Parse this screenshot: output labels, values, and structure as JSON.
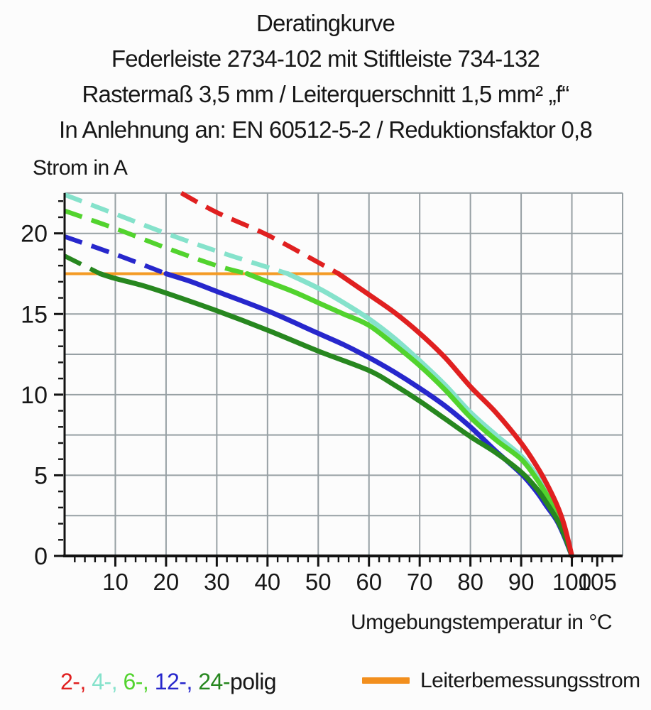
{
  "title": {
    "lines": [
      "Deratingkurve",
      "Federleiste 2734-102 mit Stiftleiste 734-132",
      "Rastermaß 3,5 mm / Leiterquerschnitt 1,5 mm² „f“",
      "In Anlehnung an: EN 60512-5-2 / Reduktionsfaktor 0,8"
    ]
  },
  "chart_data": {
    "type": "line",
    "title": "Deratingkurve",
    "xlabel": "Umgebungstemperatur in °C",
    "ylabel": "Strom in A",
    "xlim": [
      0,
      110
    ],
    "ylim": [
      0,
      22.5
    ],
    "x_major_ticks": [
      10,
      20,
      30,
      40,
      50,
      60,
      70,
      80,
      90,
      100,
      105
    ],
    "x_minor_step": 2,
    "y_major_ticks": [
      0,
      5,
      10,
      15,
      20
    ],
    "y_minor_step": 1,
    "grid": {
      "x_step": 10,
      "y_step": 2.5,
      "color": "#97A0A4",
      "on": true
    },
    "axis_color": "#121212",
    "rated_current_line": {
      "y": 17.5,
      "x_start": 0,
      "x_end": 54,
      "color": "#F49B25"
    },
    "series": [
      {
        "name": "4-polig",
        "color": "#85E2CB",
        "dashed": [
          [
            0,
            22.4
          ],
          [
            10,
            21.2
          ],
          [
            20,
            20.0
          ],
          [
            30,
            18.9
          ],
          [
            40,
            17.9
          ],
          [
            44,
            17.5
          ]
        ],
        "solid": [
          [
            44,
            17.5
          ],
          [
            50,
            16.6
          ],
          [
            55,
            15.7
          ],
          [
            60,
            14.7
          ],
          [
            65,
            13.5
          ],
          [
            70,
            12.1
          ],
          [
            75,
            10.6
          ],
          [
            80,
            8.9
          ],
          [
            85,
            7.5
          ],
          [
            90,
            6.2
          ],
          [
            93,
            5.0
          ],
          [
            95,
            4.0
          ],
          [
            97,
            2.8
          ],
          [
            98.5,
            1.7
          ],
          [
            100,
            0
          ]
        ]
      },
      {
        "name": "12-polig",
        "color": "#2727CC",
        "dashed": [
          [
            0,
            19.8
          ],
          [
            10,
            18.7
          ],
          [
            20,
            17.5
          ]
        ],
        "solid": [
          [
            20,
            17.5
          ],
          [
            25,
            17.0
          ],
          [
            30,
            16.4
          ],
          [
            40,
            15.2
          ],
          [
            50,
            13.8
          ],
          [
            55,
            13.1
          ],
          [
            60,
            12.3
          ],
          [
            65,
            11.4
          ],
          [
            70,
            10.4
          ],
          [
            75,
            9.3
          ],
          [
            80,
            8.0
          ],
          [
            85,
            6.5
          ],
          [
            90,
            5.1
          ],
          [
            93,
            4.0
          ],
          [
            95,
            3.1
          ],
          [
            97,
            2.2
          ],
          [
            98.5,
            1.2
          ],
          [
            100,
            0
          ]
        ]
      },
      {
        "name": "6-polig",
        "color": "#52D32E",
        "dashed": [
          [
            0,
            21.4
          ],
          [
            10,
            20.3
          ],
          [
            20,
            19.1
          ],
          [
            30,
            18.0
          ],
          [
            36,
            17.5
          ]
        ],
        "solid": [
          [
            36,
            17.5
          ],
          [
            40,
            17.0
          ],
          [
            45,
            16.4
          ],
          [
            50,
            15.7
          ],
          [
            55,
            15.0
          ],
          [
            60,
            14.3
          ],
          [
            65,
            13.1
          ],
          [
            70,
            11.8
          ],
          [
            75,
            10.3
          ],
          [
            80,
            8.6
          ],
          [
            85,
            7.2
          ],
          [
            90,
            6.0
          ],
          [
            93,
            4.8
          ],
          [
            95,
            3.8
          ],
          [
            97,
            2.7
          ],
          [
            98.5,
            1.6
          ],
          [
            100,
            0
          ]
        ]
      },
      {
        "name": "24-polig",
        "color": "#27871F",
        "dashed": [
          [
            0,
            18.6
          ],
          [
            7,
            17.5
          ]
        ],
        "solid": [
          [
            7,
            17.5
          ],
          [
            10,
            17.2
          ],
          [
            15,
            16.8
          ],
          [
            20,
            16.3
          ],
          [
            30,
            15.2
          ],
          [
            40,
            14.0
          ],
          [
            50,
            12.7
          ],
          [
            60,
            11.5
          ],
          [
            65,
            10.6
          ],
          [
            70,
            9.6
          ],
          [
            75,
            8.5
          ],
          [
            80,
            7.4
          ],
          [
            85,
            6.4
          ],
          [
            90,
            5.2
          ],
          [
            93,
            4.2
          ],
          [
            95,
            3.3
          ],
          [
            97,
            2.3
          ],
          [
            98.5,
            1.3
          ],
          [
            100,
            0
          ]
        ]
      },
      {
        "name": "2-polig",
        "color": "#E02020",
        "dashed": [
          [
            23,
            22.5
          ],
          [
            30,
            21.3
          ],
          [
            40,
            19.9
          ],
          [
            50,
            18.2
          ],
          [
            54,
            17.5
          ]
        ],
        "solid": [
          [
            54,
            17.5
          ],
          [
            60,
            16.2
          ],
          [
            65,
            15.1
          ],
          [
            70,
            13.8
          ],
          [
            75,
            12.3
          ],
          [
            80,
            10.5
          ],
          [
            85,
            8.9
          ],
          [
            90,
            7.0
          ],
          [
            93,
            5.6
          ],
          [
            95,
            4.5
          ],
          [
            97,
            3.2
          ],
          [
            98.5,
            1.9
          ],
          [
            100,
            0
          ]
        ]
      }
    ]
  },
  "legend": {
    "poles": [
      {
        "text": "2-,",
        "color": "#E02020"
      },
      {
        "text": "4-,",
        "color": "#85E2CB"
      },
      {
        "text": "6-,",
        "color": "#52D32E"
      },
      {
        "text": "12-,",
        "color": "#2727CC"
      },
      {
        "text": "24-",
        "color": "#27871F"
      }
    ],
    "suffix": "polig",
    "rated": {
      "label": "Leiterbemessungsstrom",
      "color": "#F28F1E"
    }
  }
}
